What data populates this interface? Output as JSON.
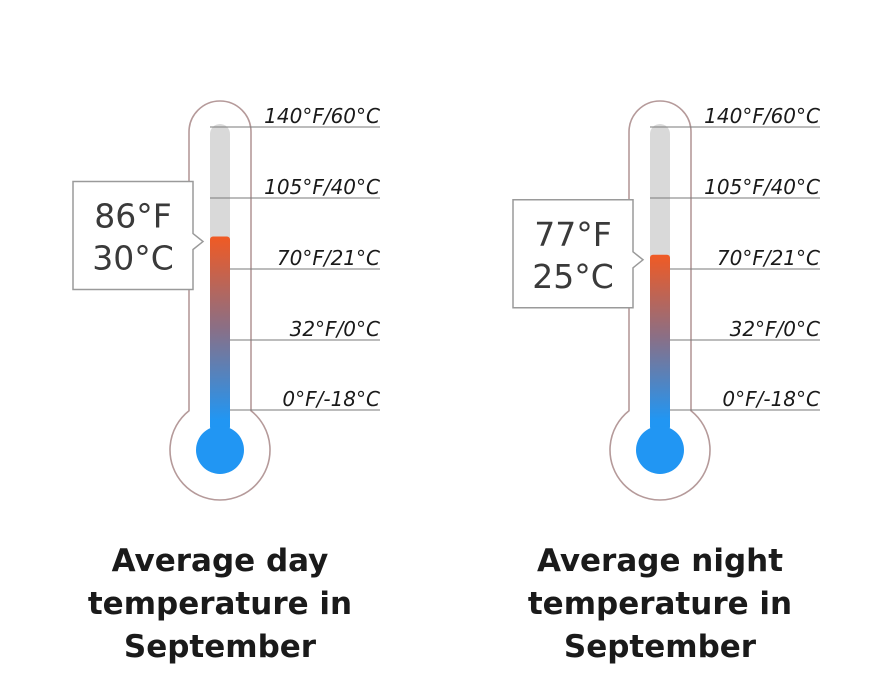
{
  "chart_data": [
    {
      "type": "thermometer",
      "title_lines": [
        "Average day",
        "temperature in",
        "September"
      ],
      "value_f": 86,
      "value_c": 30,
      "value_f_label": "86°F",
      "value_c_label": "30°C",
      "scale_ticks": [
        {
          "f": 140,
          "label": "140°F/60°C"
        },
        {
          "f": 105,
          "label": "105°F/40°C"
        },
        {
          "f": 70,
          "label": "70°F/21°C"
        },
        {
          "f": 32,
          "label": "32°F/0°C"
        },
        {
          "f": 0,
          "label": "0°F/-18°C"
        }
      ]
    },
    {
      "type": "thermometer",
      "title_lines": [
        "Average night",
        "temperature in",
        "September"
      ],
      "value_f": 77,
      "value_c": 25,
      "value_f_label": "77°F",
      "value_c_label": "25°C",
      "scale_ticks": [
        {
          "f": 140,
          "label": "140°F/60°C"
        },
        {
          "f": 105,
          "label": "105°F/40°C"
        },
        {
          "f": 70,
          "label": "70°F/21°C"
        },
        {
          "f": 32,
          "label": "32°F/0°C"
        },
        {
          "f": 0,
          "label": "0°F/-18°C"
        }
      ]
    }
  ],
  "colors": {
    "outline": "#b59a9a",
    "tube_empty": "#d9d9d9",
    "hot": "#f05a24",
    "mid": "#8a6f86",
    "cold": "#2196f3",
    "tick_line": "#7a7a7a",
    "callout_border": "#9a9a9a"
  }
}
